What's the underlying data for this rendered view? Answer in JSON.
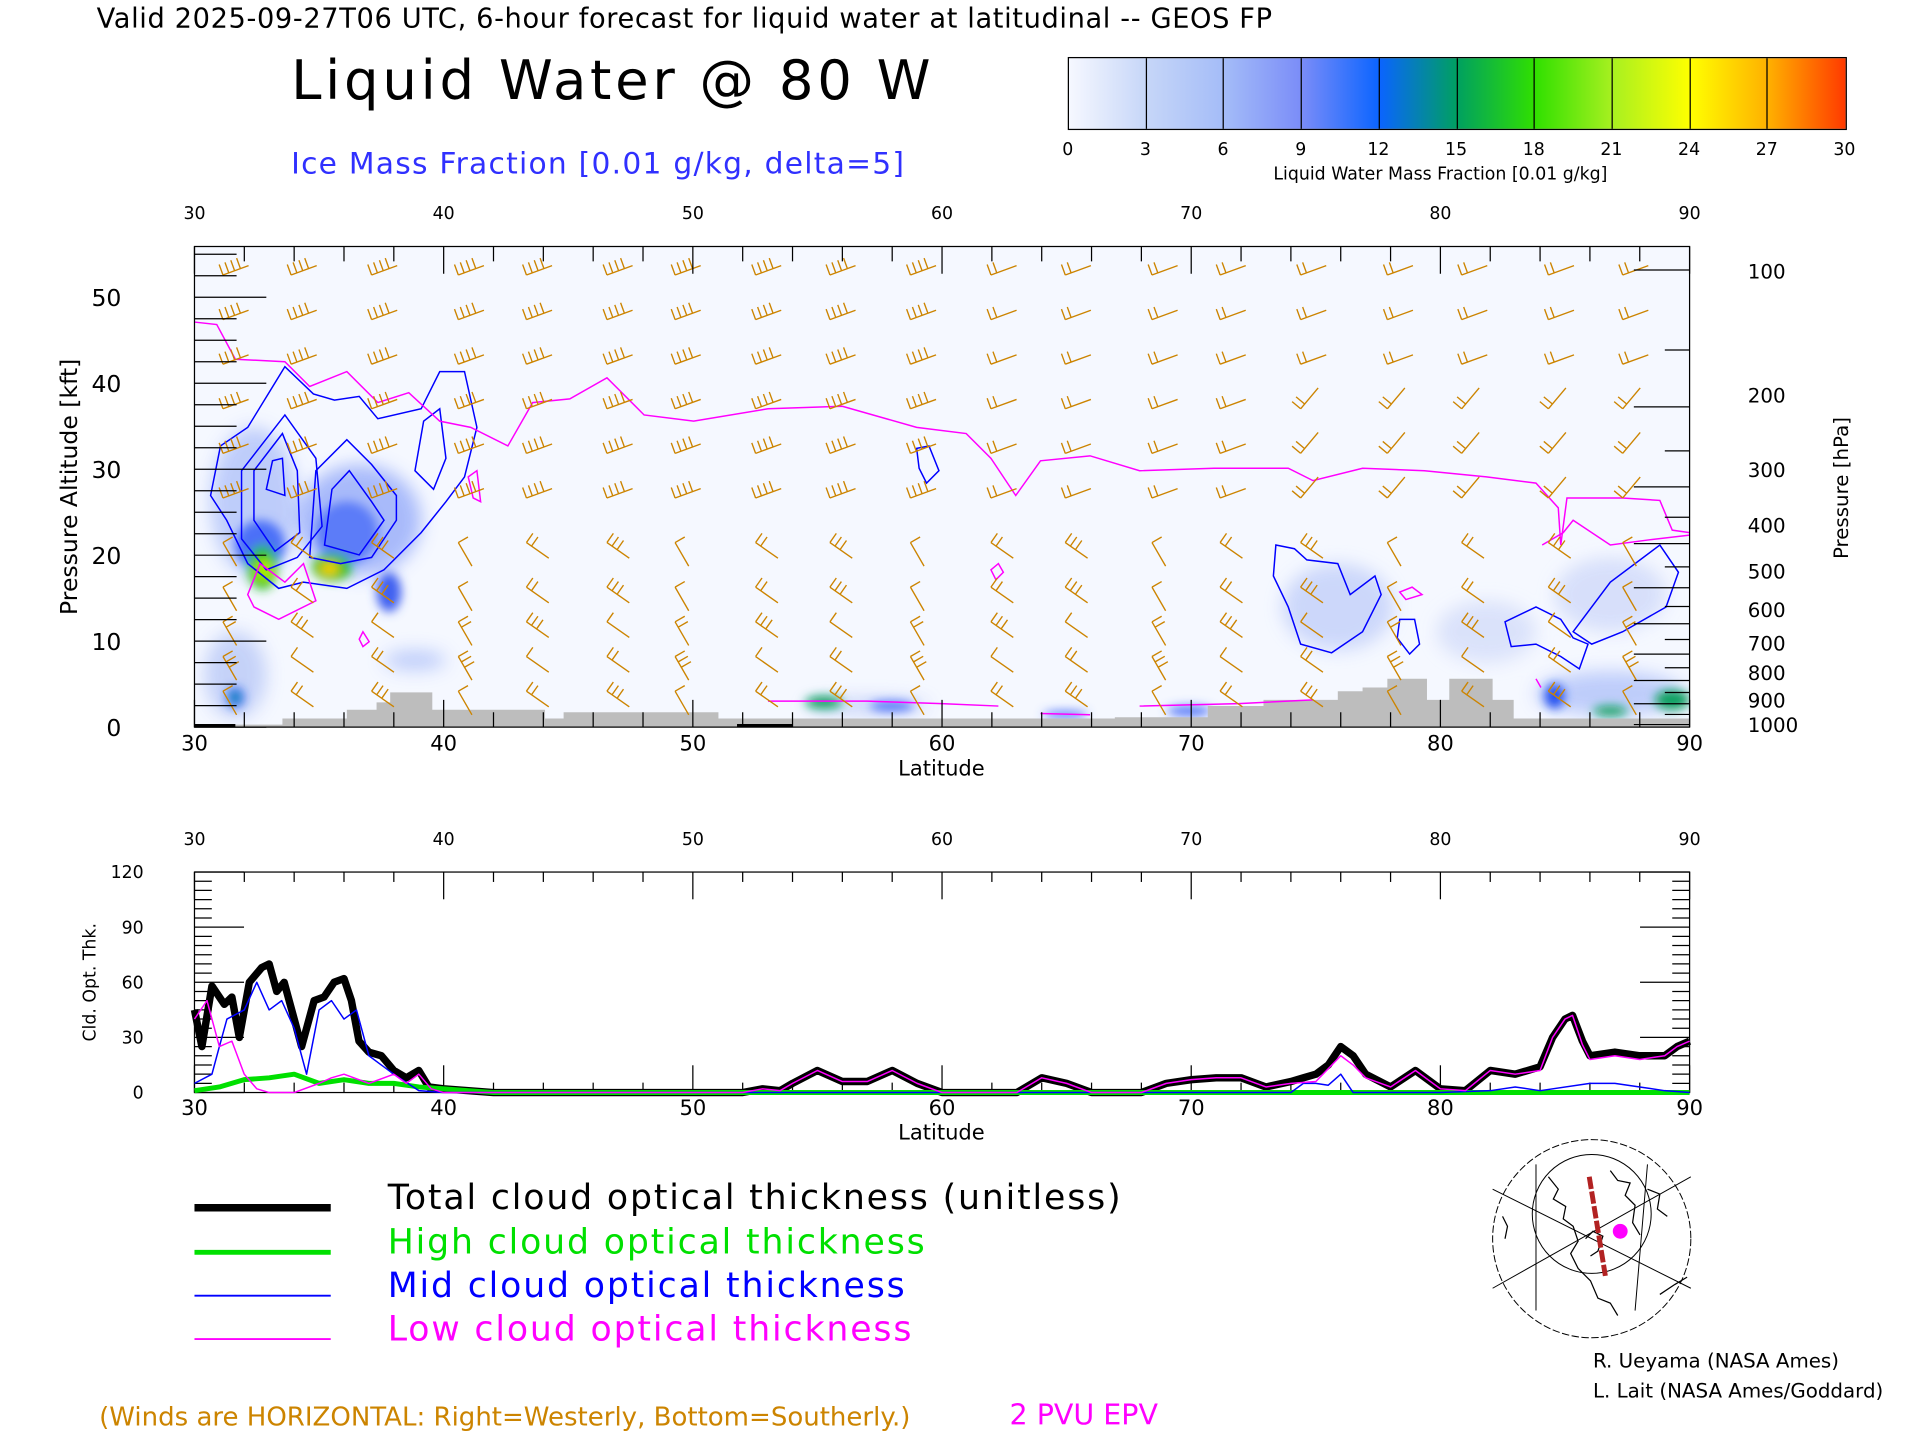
{
  "header": {
    "valid_line": "Valid 2025-09-27T06 UTC, 6-hour forecast for liquid water at latitudinal -- GEOS FP",
    "main_title": "Liquid Water @ 80 W",
    "ice_label": "Ice Mass Fraction [0.01 g/kg, delta=5]"
  },
  "colorbar": {
    "ticks": [
      "0",
      "3",
      "6",
      "9",
      "12",
      "15",
      "18",
      "21",
      "24",
      "27",
      "30"
    ],
    "label": "Liquid Water Mass Fraction [0.01 g/kg]",
    "colors": [
      "#f2f5ff",
      "#c6d6f8",
      "#9ab4f8",
      "#7a8cf8",
      "#0a64ff",
      "#00a060",
      "#30e000",
      "#a8f020",
      "#ffff00",
      "#ffb000",
      "#ff3a00"
    ]
  },
  "colors": {
    "wind": "#cc8400",
    "epv": "#ff00ff",
    "ice": "#0000ff",
    "terrain": "#bdbdbd",
    "total": "#000000",
    "high": "#00e000",
    "mid": "#0000ff",
    "low": "#ff00ff"
  },
  "chart_data": [
    {
      "type": "heatmap",
      "title": "Liquid Water @ 80 W",
      "xlabel": "Latitude",
      "ylabel": "Pressure Altitude [kft]",
      "ylabel_right": "Pressure [hPa]",
      "xlim": [
        30,
        90
      ],
      "ylim": [
        0,
        55
      ],
      "x_ticks": [
        "30",
        "40",
        "50",
        "60",
        "70",
        "80",
        "90"
      ],
      "y_ticks": [
        "0",
        "10",
        "20",
        "30",
        "40",
        "50"
      ],
      "pressure_ticks": [
        "100",
        "200",
        "300",
        "400",
        "500",
        "600",
        "700",
        "800",
        "900",
        "1000"
      ],
      "overlays": [
        "Ice Mass Fraction contours",
        "2 PVU EPV",
        "Wind barbs"
      ]
    },
    {
      "type": "line",
      "xlabel": "Latitude",
      "ylabel": "Cld. Opt. Thk.",
      "xlim": [
        30,
        90
      ],
      "ylim": [
        0,
        120
      ],
      "x_ticks": [
        "30",
        "40",
        "50",
        "60",
        "70",
        "80",
        "90"
      ],
      "y_ticks": [
        "0",
        "30",
        "60",
        "90",
        "120"
      ],
      "series": [
        {
          "name": "Total cloud optical thickness (unitless)",
          "color": "#000000",
          "points": [
            [
              30,
              45
            ],
            [
              30.3,
              25
            ],
            [
              30.7,
              58
            ],
            [
              31.2,
              48
            ],
            [
              31.5,
              52
            ],
            [
              31.8,
              30
            ],
            [
              32.2,
              60
            ],
            [
              32.7,
              68
            ],
            [
              33,
              70
            ],
            [
              33.3,
              55
            ],
            [
              33.6,
              60
            ],
            [
              34,
              40
            ],
            [
              34.3,
              25
            ],
            [
              34.8,
              50
            ],
            [
              35.2,
              52
            ],
            [
              35.6,
              60
            ],
            [
              36,
              62
            ],
            [
              36.3,
              50
            ],
            [
              36.6,
              28
            ],
            [
              37,
              22
            ],
            [
              37.5,
              20
            ],
            [
              38,
              12
            ],
            [
              38.5,
              8
            ],
            [
              39,
              12
            ],
            [
              39.4,
              3
            ],
            [
              40,
              2
            ],
            [
              41,
              1
            ],
            [
              42,
              0
            ],
            [
              52,
              0
            ],
            [
              52.8,
              2
            ],
            [
              53.5,
              1
            ],
            [
              54,
              5
            ],
            [
              55,
              12
            ],
            [
              56,
              6
            ],
            [
              57,
              6
            ],
            [
              58,
              12
            ],
            [
              59,
              5
            ],
            [
              60,
              0
            ],
            [
              63,
              0
            ],
            [
              64,
              8
            ],
            [
              65,
              5
            ],
            [
              66,
              0
            ],
            [
              68,
              0
            ],
            [
              69,
              5
            ],
            [
              70,
              7
            ],
            [
              71,
              8
            ],
            [
              72,
              8
            ],
            [
              73,
              3
            ],
            [
              74,
              6
            ],
            [
              74.5,
              8
            ],
            [
              75,
              10
            ],
            [
              75.5,
              15
            ],
            [
              76,
              25
            ],
            [
              76.5,
              20
            ],
            [
              77,
              10
            ],
            [
              78,
              3
            ],
            [
              79,
              12
            ],
            [
              80,
              2
            ],
            [
              81,
              1
            ],
            [
              82,
              12
            ],
            [
              83,
              10
            ],
            [
              84,
              14
            ],
            [
              84.5,
              30
            ],
            [
              85,
              40
            ],
            [
              85.3,
              42
            ],
            [
              85.7,
              28
            ],
            [
              86,
              20
            ],
            [
              87,
              22
            ],
            [
              88,
              20
            ],
            [
              89,
              20
            ],
            [
              89.5,
              25
            ],
            [
              90,
              28
            ]
          ]
        },
        {
          "name": "High cloud optical thickness",
          "color": "#00e000",
          "points": [
            [
              30,
              1
            ],
            [
              31,
              3
            ],
            [
              32,
              7
            ],
            [
              33,
              8
            ],
            [
              34,
              10
            ],
            [
              35,
              5
            ],
            [
              36,
              7
            ],
            [
              37,
              5
            ],
            [
              38,
              5
            ],
            [
              39,
              3
            ],
            [
              40,
              2
            ],
            [
              41,
              1
            ],
            [
              42,
              0
            ],
            [
              90,
              0
            ]
          ]
        },
        {
          "name": "Mid cloud optical thickness",
          "color": "#0000ff",
          "points": [
            [
              30,
              5
            ],
            [
              30.7,
              10
            ],
            [
              31,
              25
            ],
            [
              31.3,
              40
            ],
            [
              32,
              45
            ],
            [
              32.5,
              60
            ],
            [
              33,
              45
            ],
            [
              33.5,
              50
            ],
            [
              34,
              35
            ],
            [
              34.5,
              10
            ],
            [
              35,
              45
            ],
            [
              35.5,
              50
            ],
            [
              36,
              40
            ],
            [
              36.5,
              45
            ],
            [
              37,
              20
            ],
            [
              37.5,
              15
            ],
            [
              38,
              10
            ],
            [
              39,
              1
            ],
            [
              40,
              0
            ],
            [
              74,
              0
            ],
            [
              74.5,
              5
            ],
            [
              75,
              5
            ],
            [
              75.5,
              4
            ],
            [
              76,
              10
            ],
            [
              76.5,
              0
            ],
            [
              80,
              0
            ],
            [
              82,
              1
            ],
            [
              83,
              3
            ],
            [
              84,
              1
            ],
            [
              86,
              5
            ],
            [
              87,
              5
            ],
            [
              88,
              3
            ],
            [
              89,
              1
            ],
            [
              90,
              0
            ]
          ]
        },
        {
          "name": "Low cloud optical thickness",
          "color": "#ff00ff",
          "points": [
            [
              30,
              40
            ],
            [
              30.5,
              50
            ],
            [
              31,
              25
            ],
            [
              31.5,
              28
            ],
            [
              32,
              10
            ],
            [
              32.5,
              2
            ],
            [
              33,
              0
            ],
            [
              34,
              0
            ],
            [
              35,
              5
            ],
            [
              35.5,
              8
            ],
            [
              36,
              10
            ],
            [
              37,
              5
            ],
            [
              38,
              10
            ],
            [
              38.5,
              5
            ],
            [
              39,
              10
            ],
            [
              39.5,
              2
            ],
            [
              40,
              0
            ],
            [
              52,
              0
            ],
            [
              52.8,
              2
            ],
            [
              53.5,
              1
            ],
            [
              54,
              5
            ],
            [
              55,
              12
            ],
            [
              56,
              6
            ],
            [
              57,
              6
            ],
            [
              58,
              12
            ],
            [
              59,
              5
            ],
            [
              60,
              0
            ],
            [
              63,
              0
            ],
            [
              64,
              8
            ],
            [
              65,
              5
            ],
            [
              66,
              0
            ],
            [
              68,
              0
            ],
            [
              69,
              5
            ],
            [
              70,
              7
            ],
            [
              71,
              8
            ],
            [
              72,
              8
            ],
            [
              73,
              3
            ],
            [
              74,
              5
            ],
            [
              75,
              6
            ],
            [
              76,
              20
            ],
            [
              76.5,
              15
            ],
            [
              77,
              8
            ],
            [
              78,
              3
            ],
            [
              79,
              12
            ],
            [
              80,
              2
            ],
            [
              81,
              1
            ],
            [
              82,
              12
            ],
            [
              83,
              10
            ],
            [
              84,
              12
            ],
            [
              84.5,
              30
            ],
            [
              85,
              40
            ],
            [
              85.3,
              42
            ],
            [
              85.7,
              26
            ],
            [
              86,
              18
            ],
            [
              87,
              20
            ],
            [
              88,
              18
            ],
            [
              89,
              20
            ],
            [
              89.5,
              25
            ],
            [
              90,
              28
            ]
          ]
        }
      ]
    }
  ],
  "legend": [
    {
      "label": "Total cloud optical thickness (unitless)",
      "color": "#000000"
    },
    {
      "label": "High cloud optical thickness",
      "color": "#00e000"
    },
    {
      "label": "Mid cloud optical thickness",
      "color": "#0000ff"
    },
    {
      "label": "Low cloud optical thickness",
      "color": "#ff00ff"
    }
  ],
  "footer": {
    "winds_note": "(Winds are HORIZONTAL: Right=Westerly, Bottom=Southerly.)",
    "epv_label": "2 PVU EPV",
    "credit_1": "R. Ueyama (NASA Ames)",
    "credit_2": "L. Lait (NASA Ames/Goddard)"
  }
}
